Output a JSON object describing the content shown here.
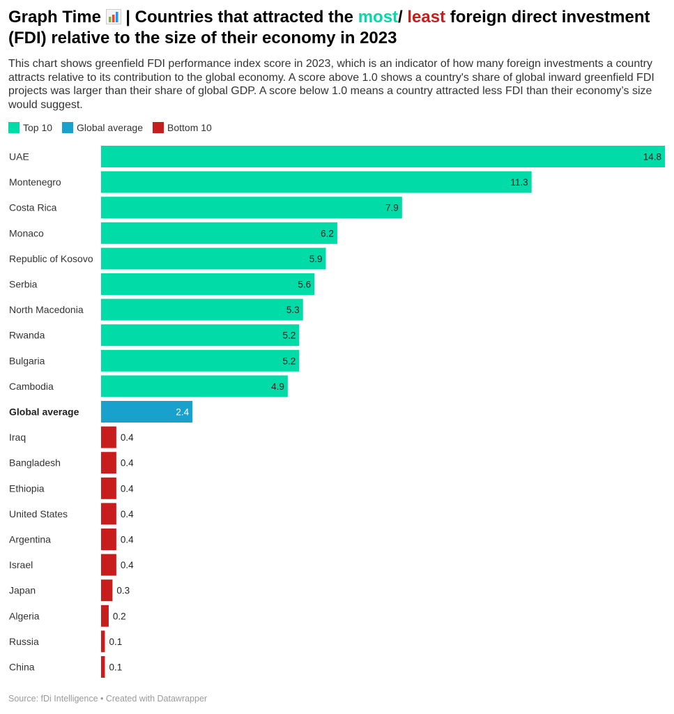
{
  "header": {
    "title_prefix": "Graph Time",
    "title_icon": "bar-chart-emoji",
    "title_part1": " | Countries that attracted the ",
    "title_most": "most",
    "title_sep": "/ ",
    "title_least": "least",
    "title_part2": " foreign direct investment (FDI) relative to the size of their economy in 2023",
    "description": "This chart shows greenfield FDI performance index score in 2023, which is an indicator of how many foreign investments a country attracts relative to its contribution to the global economy. A score above 1.0 shows a country's share of global inward greenfield FDI projects was larger than their share of global GDP. A score below 1.0 means a country attracted less FDI than their economy’s size would suggest."
  },
  "legend": [
    {
      "label": "Top 10",
      "color": "#00dba8"
    },
    {
      "label": "Global average",
      "color": "#18a1cd"
    },
    {
      "label": "Bottom 10",
      "color": "#c71e1d"
    }
  ],
  "footer": {
    "source": "Source: fDi Intelligence • Created with Datawrapper"
  },
  "chart_data": {
    "type": "bar",
    "orientation": "horizontal",
    "title": "Countries that attracted the most/ least foreign direct investment (FDI) relative to the size of their economy in 2023",
    "xlabel": "",
    "ylabel": "",
    "xlim": [
      0,
      14.8
    ],
    "grid": false,
    "legend_position": "top-left",
    "categories": [
      "UAE",
      "Montenegro",
      "Costa Rica",
      "Monaco",
      "Republic of Kosovo",
      "Serbia",
      "North Macedonia",
      "Rwanda",
      "Bulgaria",
      "Cambodia",
      "Global average",
      "Iraq",
      "Bangladesh",
      "Ethiopia",
      "United States",
      "Argentina",
      "Israel",
      "Japan",
      "Algeria",
      "Russia",
      "China"
    ],
    "values": [
      14.8,
      11.3,
      7.9,
      6.2,
      5.9,
      5.6,
      5.3,
      5.2,
      5.2,
      4.9,
      2.4,
      0.4,
      0.4,
      0.4,
      0.4,
      0.4,
      0.4,
      0.3,
      0.2,
      0.1,
      0.1
    ],
    "groups": [
      "Top 10",
      "Top 10",
      "Top 10",
      "Top 10",
      "Top 10",
      "Top 10",
      "Top 10",
      "Top 10",
      "Top 10",
      "Top 10",
      "Global average",
      "Bottom 10",
      "Bottom 10",
      "Bottom 10",
      "Bottom 10",
      "Bottom 10",
      "Bottom 10",
      "Bottom 10",
      "Bottom 10",
      "Bottom 10",
      "Bottom 10"
    ],
    "value_labels": [
      "14.8",
      "11.3",
      "7.9",
      "6.2",
      "5.9",
      "5.6",
      "5.3",
      "5.2",
      "5.2",
      "4.9",
      "2.4",
      "0.4",
      "0.4",
      "0.4",
      "0.4",
      "0.4",
      "0.4",
      "0.3",
      "0.2",
      "0.1",
      "0.1"
    ],
    "bold_categories": [
      "Global average"
    ],
    "group_colors": {
      "Top 10": "#00dba8",
      "Global average": "#18a1cd",
      "Bottom 10": "#c71e1d"
    }
  }
}
